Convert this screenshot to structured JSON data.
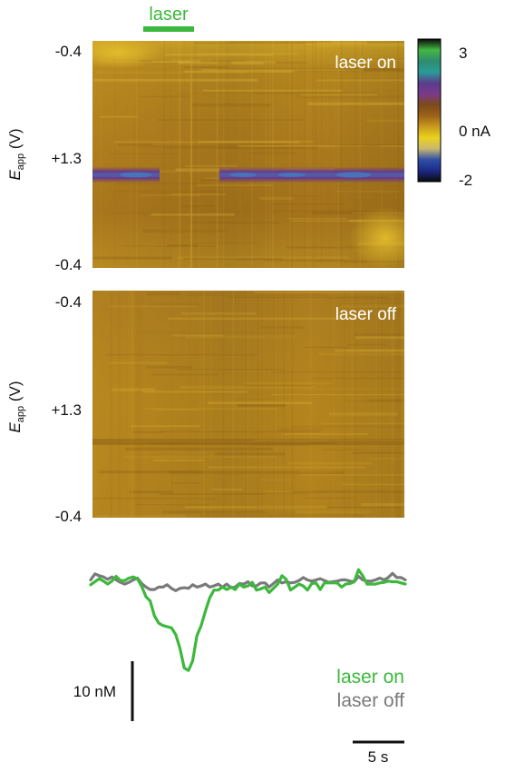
{
  "stimulus": {
    "label": "laser",
    "color": "#3cb83c"
  },
  "chart_data": [
    {
      "type": "heatmap",
      "name": "laser-on-color-plot",
      "annotation": "laser on",
      "ylabel_main": "E",
      "ylabel_sub": "app",
      "ylabel_unit": " (V)",
      "ytick_labels": [
        "-0.4",
        "+1.3",
        "-0.4"
      ],
      "y_waveform_V": [
        -0.4,
        1.3,
        -0.4
      ],
      "oxidation_band": {
        "position_fraction": 0.59,
        "peak_current_nA": -2,
        "laser_gap": true
      },
      "background_current_nA": 0
    },
    {
      "type": "heatmap",
      "name": "laser-off-color-plot",
      "annotation": "laser off",
      "ylabel_main": "E",
      "ylabel_sub": "app",
      "ylabel_unit": " (V)",
      "ytick_labels": [
        "-0.4",
        "+1.3",
        "-0.4"
      ],
      "y_waveform_V": [
        -0.4,
        1.3,
        -0.4
      ],
      "background_current_nA": 0
    },
    {
      "type": "colorbar",
      "name": "current-colorbar",
      "range_nA": [
        -2,
        3
      ],
      "tick_labels": [
        "3",
        "0 nA",
        "-2"
      ],
      "tick_values": [
        3,
        0,
        -2
      ],
      "colors": [
        "#0a0a0a",
        "#43b844",
        "#2f8c6e",
        "#2a9c97",
        "#5a3d8d",
        "#7a3a8a",
        "#7c4a1a",
        "#9c6218",
        "#c99a1e",
        "#e8d21e",
        "#c8b870",
        "#2f4fa6",
        "#1c2a88",
        "#0a0a0a"
      ]
    },
    {
      "type": "line",
      "name": "dopamine-traces",
      "series": [
        {
          "name": "laser on",
          "color": "#3cb83c",
          "values": [
            0,
            0.5,
            1,
            0.6,
            0.1,
            0.6,
            1.4,
            0.7,
            0.7,
            1.1,
            1.3,
            1.0,
            -0.3,
            -2.0,
            -2.7,
            -5.2,
            -6.4,
            -6.8,
            -7.0,
            -7.2,
            -8.3,
            -10.6,
            -13.9,
            -14.3,
            -12.7,
            -8.5,
            -6.8,
            -4.4,
            -2.2,
            -0.9,
            -0.9,
            -0.4,
            -0.8,
            -0.4,
            -0.8,
            0.1,
            -0.4,
            -0.2,
            0.4,
            -0.9,
            -0.7,
            -0.4,
            -1.3,
            -0.6,
            0.1,
            1.5,
            0.9,
            -0.9,
            -0.4,
            0.1,
            -0.2,
            -0.9,
            0.2,
            0.3,
            -0.8,
            0.3,
            0.3,
            0.3,
            0.3,
            -0.4,
            0.1,
            0.2,
            0.5,
            2.5,
            1.5,
            0.1,
            0.1,
            0.1,
            0.3,
            0.4,
            0.6,
            0.5,
            0.5,
            0.3,
            0.1
          ]
        },
        {
          "name": "laser off",
          "color": "#7a7a7a",
          "values": [
            0.8,
            1.8,
            1.5,
            1.3,
            0.9,
            1.3,
            0.8,
            0.4,
            0.1,
            0.4,
            0.8,
            1.1,
            0.2,
            -0.4,
            -0.8,
            -0.8,
            -0.4,
            -0.4,
            0.0,
            -0.6,
            -1.0,
            -0.6,
            -0.5,
            -0.6,
            0.0,
            -0.4,
            -0.2,
            0.1,
            -0.4,
            -0.2,
            0.1,
            -0.4,
            0.1,
            -0.5,
            -0.4,
            0.2,
            0.1,
            0.5,
            -0.2,
            -0.2,
            0.3,
            0.3,
            -0.4,
            0.2,
            0.8,
            0.3,
            0.5,
            0.3,
            0.4,
            0.7,
            1.2,
            0.8,
            0.6,
            0.8,
            1.0,
            0.7,
            0.4,
            0.5,
            0.6,
            0.8,
            0.8,
            0.6,
            0.5,
            1.4,
            0.8,
            0.6,
            0.6,
            0.8,
            1.1,
            0.8,
            1.2,
            1.9,
            1.2,
            1.2,
            0.8
          ]
        }
      ],
      "scale_bar_y_label": "10 nM",
      "scale_bar_y_value": 10,
      "scale_bar_x_label": "5 s",
      "scale_bar_x_value": 5,
      "ylim": [
        -15,
        3
      ]
    }
  ]
}
